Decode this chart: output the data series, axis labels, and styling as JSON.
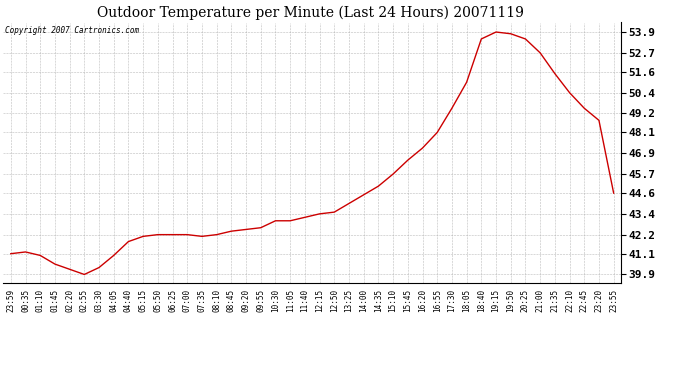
{
  "title": "Outdoor Temperature per Minute (Last 24 Hours) 20071119",
  "copyright": "Copyright 2007 Cartronics.com",
  "line_color": "#cc0000",
  "background_color": "#ffffff",
  "plot_bg_color": "#ffffff",
  "grid_color": "#aaaaaa",
  "yticks": [
    39.9,
    41.1,
    42.2,
    43.4,
    44.6,
    45.7,
    46.9,
    48.1,
    49.2,
    50.4,
    51.6,
    52.7,
    53.9
  ],
  "ylim": [
    39.4,
    54.45
  ],
  "xtick_labels": [
    "23:59",
    "00:35",
    "01:10",
    "01:45",
    "02:20",
    "02:55",
    "03:30",
    "04:05",
    "04:40",
    "05:15",
    "05:50",
    "06:25",
    "07:00",
    "07:35",
    "08:10",
    "08:45",
    "09:20",
    "09:55",
    "10:30",
    "11:05",
    "11:40",
    "12:15",
    "12:50",
    "13:25",
    "14:00",
    "14:35",
    "15:10",
    "15:45",
    "16:20",
    "16:55",
    "17:30",
    "18:05",
    "18:40",
    "19:15",
    "19:50",
    "20:25",
    "21:00",
    "21:35",
    "22:10",
    "22:45",
    "23:20",
    "23:55"
  ],
  "ctrl_y": [
    41.1,
    41.2,
    41.0,
    40.5,
    40.2,
    39.9,
    40.3,
    41.0,
    41.8,
    42.1,
    42.2,
    42.2,
    42.2,
    42.1,
    42.2,
    42.4,
    42.5,
    42.6,
    43.0,
    43.0,
    43.2,
    43.4,
    43.5,
    44.0,
    44.5,
    45.0,
    45.7,
    46.5,
    47.2,
    48.1,
    49.5,
    51.0,
    53.5,
    53.9,
    53.8,
    53.5,
    52.7,
    51.5,
    50.4,
    49.5,
    48.8,
    44.6
  ]
}
